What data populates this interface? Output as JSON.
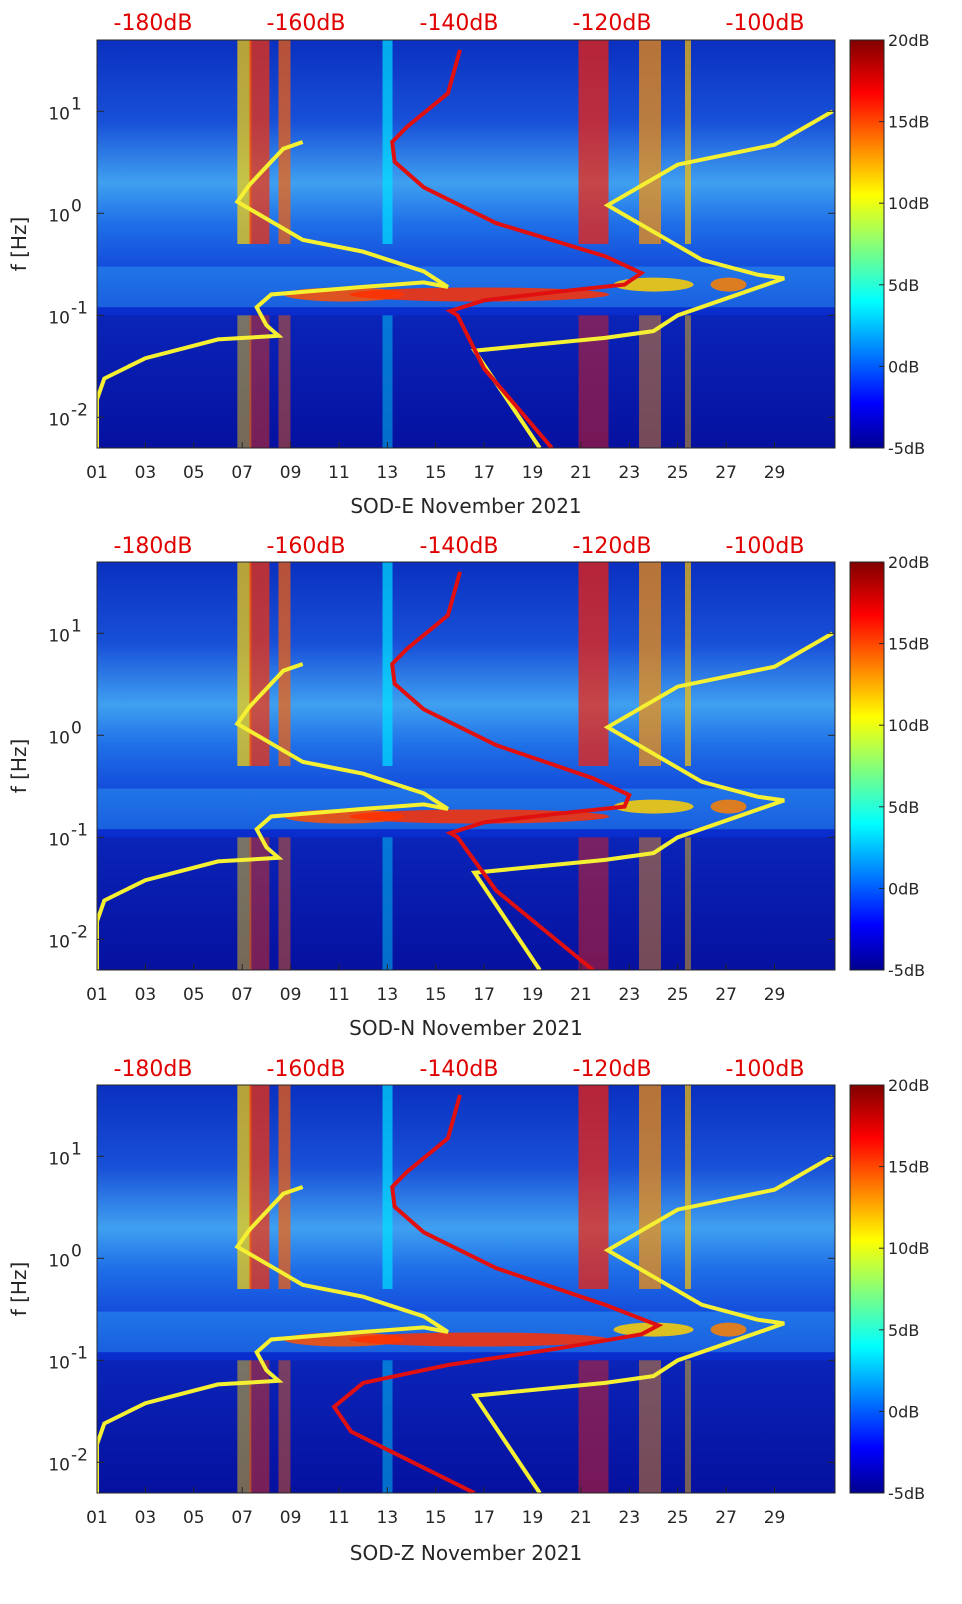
{
  "chart_data": [
    {
      "type": "heatmap",
      "xlabel": "SOD-E November 2021",
      "ylabel": "f [Hz]",
      "x_ticks": [
        "01",
        "03",
        "05",
        "07",
        "09",
        "11",
        "13",
        "15",
        "17",
        "19",
        "21",
        "23",
        "25",
        "27",
        "29"
      ],
      "y_ticks": [
        {
          "value": 0.01,
          "base": "10",
          "exp": "-2"
        },
        {
          "value": 0.1,
          "base": "10",
          "exp": "-1"
        },
        {
          "value": 1,
          "base": "10",
          "exp": "0"
        },
        {
          "value": 10,
          "base": "10",
          "exp": "1"
        }
      ],
      "ylim": [
        0.005,
        50
      ],
      "xlim": [
        1,
        31.5
      ],
      "yscale": "log",
      "colorbar": {
        "ticks": [
          "20dB",
          "15dB",
          "10dB",
          "5dB",
          "0dB",
          "-5dB"
        ],
        "range": [
          -5,
          20
        ]
      },
      "top_db_labels": [
        "-180dB",
        "-160dB",
        "-140dB",
        "-120dB",
        "-100dB"
      ],
      "yellow_curve": [
        [
          1.0,
          0.005
        ],
        [
          1.0,
          0.015
        ],
        [
          1.3,
          0.024
        ],
        [
          3,
          0.038
        ],
        [
          6,
          0.058
        ],
        [
          8.5,
          0.063
        ],
        [
          8.0,
          0.08
        ],
        [
          7.6,
          0.12
        ],
        [
          8.2,
          0.16
        ],
        [
          12,
          0.19
        ],
        [
          14.5,
          0.21
        ],
        [
          15.5,
          0.19
        ],
        [
          14.5,
          0.27
        ],
        [
          12,
          0.42
        ],
        [
          9.5,
          0.55
        ],
        [
          6.8,
          1.3
        ],
        [
          7.3,
          1.9
        ],
        [
          8.7,
          4.3
        ],
        [
          9.5,
          5.0
        ]
      ],
      "yellow_curve_2": [
        [
          19.3,
          0.005
        ],
        [
          16.6,
          0.045
        ],
        [
          22,
          0.06
        ],
        [
          24,
          0.07
        ],
        [
          25,
          0.1
        ],
        [
          29.4,
          0.23
        ],
        [
          28.3,
          0.25
        ],
        [
          26,
          0.35
        ],
        [
          22.1,
          1.2
        ],
        [
          25.0,
          3.0
        ],
        [
          29.0,
          4.7
        ],
        [
          31.4,
          10.0
        ]
      ],
      "red_curve": [
        [
          19.8,
          0.005
        ],
        [
          17,
          0.03
        ],
        [
          15.9,
          0.1
        ],
        [
          15.6,
          0.11
        ],
        [
          17,
          0.14
        ],
        [
          20,
          0.17
        ],
        [
          22.8,
          0.2
        ],
        [
          23.5,
          0.26
        ],
        [
          22,
          0.38
        ],
        [
          17.5,
          0.8
        ],
        [
          14.5,
          1.8
        ],
        [
          13.3,
          3.2
        ],
        [
          13.2,
          5
        ],
        [
          13.8,
          7
        ],
        [
          15.5,
          15
        ],
        [
          16,
          40
        ]
      ]
    },
    {
      "type": "heatmap",
      "xlabel": "SOD-N November 2021",
      "ylabel": "f [Hz]",
      "x_ticks": [
        "01",
        "03",
        "05",
        "07",
        "09",
        "11",
        "13",
        "15",
        "17",
        "19",
        "21",
        "23",
        "25",
        "27",
        "29"
      ],
      "y_ticks": [
        {
          "value": 0.01,
          "base": "10",
          "exp": "-2"
        },
        {
          "value": 0.1,
          "base": "10",
          "exp": "-1"
        },
        {
          "value": 1,
          "base": "10",
          "exp": "0"
        },
        {
          "value": 10,
          "base": "10",
          "exp": "1"
        }
      ],
      "ylim": [
        0.005,
        50
      ],
      "xlim": [
        1,
        31.5
      ],
      "yscale": "log",
      "colorbar": {
        "ticks": [
          "20dB",
          "15dB",
          "10dB",
          "5dB",
          "0dB",
          "-5dB"
        ],
        "range": [
          -5,
          20
        ]
      },
      "top_db_labels": [
        "-180dB",
        "-160dB",
        "-140dB",
        "-120dB",
        "-100dB"
      ],
      "yellow_curve": [
        [
          1.0,
          0.005
        ],
        [
          1.0,
          0.015
        ],
        [
          1.3,
          0.024
        ],
        [
          3,
          0.038
        ],
        [
          6,
          0.058
        ],
        [
          8.5,
          0.063
        ],
        [
          8.0,
          0.08
        ],
        [
          7.6,
          0.12
        ],
        [
          8.2,
          0.16
        ],
        [
          12,
          0.19
        ],
        [
          14.5,
          0.21
        ],
        [
          15.5,
          0.19
        ],
        [
          14.5,
          0.27
        ],
        [
          12,
          0.42
        ],
        [
          9.5,
          0.55
        ],
        [
          6.8,
          1.3
        ],
        [
          7.3,
          1.9
        ],
        [
          8.7,
          4.3
        ],
        [
          9.5,
          5.0
        ]
      ],
      "yellow_curve_2": [
        [
          19.3,
          0.005
        ],
        [
          16.6,
          0.045
        ],
        [
          22,
          0.06
        ],
        [
          24,
          0.07
        ],
        [
          25,
          0.1
        ],
        [
          29.4,
          0.23
        ],
        [
          28.3,
          0.25
        ],
        [
          26,
          0.35
        ],
        [
          22.1,
          1.2
        ],
        [
          25.0,
          3.0
        ],
        [
          29.0,
          4.7
        ],
        [
          31.4,
          10.0
        ]
      ],
      "red_curve": [
        [
          21.5,
          0.005
        ],
        [
          17.5,
          0.03
        ],
        [
          15.9,
          0.1
        ],
        [
          15.6,
          0.11
        ],
        [
          17,
          0.14
        ],
        [
          20,
          0.17
        ],
        [
          22.8,
          0.2
        ],
        [
          23.0,
          0.26
        ],
        [
          21.5,
          0.38
        ],
        [
          17.5,
          0.8
        ],
        [
          14.5,
          1.8
        ],
        [
          13.3,
          3.2
        ],
        [
          13.2,
          5
        ],
        [
          13.8,
          7
        ],
        [
          15.5,
          15
        ],
        [
          16,
          40
        ]
      ]
    },
    {
      "type": "heatmap",
      "xlabel": "SOD-Z November 2021",
      "ylabel": "f [Hz]",
      "x_ticks": [
        "01",
        "03",
        "05",
        "07",
        "09",
        "11",
        "13",
        "15",
        "17",
        "19",
        "21",
        "23",
        "25",
        "27",
        "29"
      ],
      "y_ticks": [
        {
          "value": 0.01,
          "base": "10",
          "exp": "-2"
        },
        {
          "value": 0.1,
          "base": "10",
          "exp": "-1"
        },
        {
          "value": 1,
          "base": "10",
          "exp": "0"
        },
        {
          "value": 10,
          "base": "10",
          "exp": "1"
        }
      ],
      "ylim": [
        0.005,
        50
      ],
      "xlim": [
        1,
        31.5
      ],
      "yscale": "log",
      "colorbar": {
        "ticks": [
          "20dB",
          "15dB",
          "10dB",
          "5dB",
          "0dB",
          "-5dB"
        ],
        "range": [
          -5,
          20
        ]
      },
      "top_db_labels": [
        "-180dB",
        "-160dB",
        "-140dB",
        "-120dB",
        "-100dB"
      ],
      "yellow_curve": [
        [
          1.0,
          0.005
        ],
        [
          1.0,
          0.015
        ],
        [
          1.3,
          0.024
        ],
        [
          3,
          0.038
        ],
        [
          6,
          0.058
        ],
        [
          8.5,
          0.063
        ],
        [
          8.0,
          0.08
        ],
        [
          7.6,
          0.12
        ],
        [
          8.2,
          0.16
        ],
        [
          12,
          0.19
        ],
        [
          14.5,
          0.21
        ],
        [
          15.5,
          0.19
        ],
        [
          14.5,
          0.27
        ],
        [
          12,
          0.42
        ],
        [
          9.5,
          0.55
        ],
        [
          6.8,
          1.3
        ],
        [
          7.3,
          1.9
        ],
        [
          8.7,
          4.3
        ],
        [
          9.5,
          5.0
        ]
      ],
      "yellow_curve_2": [
        [
          19.3,
          0.005
        ],
        [
          16.6,
          0.045
        ],
        [
          22,
          0.06
        ],
        [
          24,
          0.07
        ],
        [
          25,
          0.1
        ],
        [
          29.4,
          0.23
        ],
        [
          28.3,
          0.25
        ],
        [
          26,
          0.35
        ],
        [
          22.1,
          1.2
        ],
        [
          25.0,
          3.0
        ],
        [
          29.0,
          4.7
        ],
        [
          31.4,
          10.0
        ]
      ],
      "red_curve": [
        [
          16.6,
          0.005
        ],
        [
          11.5,
          0.02
        ],
        [
          10.8,
          0.035
        ],
        [
          12,
          0.06
        ],
        [
          15.5,
          0.09
        ],
        [
          20,
          0.13
        ],
        [
          23.5,
          0.18
        ],
        [
          24.2,
          0.22
        ],
        [
          22,
          0.35
        ],
        [
          17.5,
          0.8
        ],
        [
          14.5,
          1.8
        ],
        [
          13.3,
          3.2
        ],
        [
          13.2,
          5
        ],
        [
          13.8,
          7
        ],
        [
          15.5,
          15
        ],
        [
          16,
          40
        ]
      ]
    }
  ]
}
